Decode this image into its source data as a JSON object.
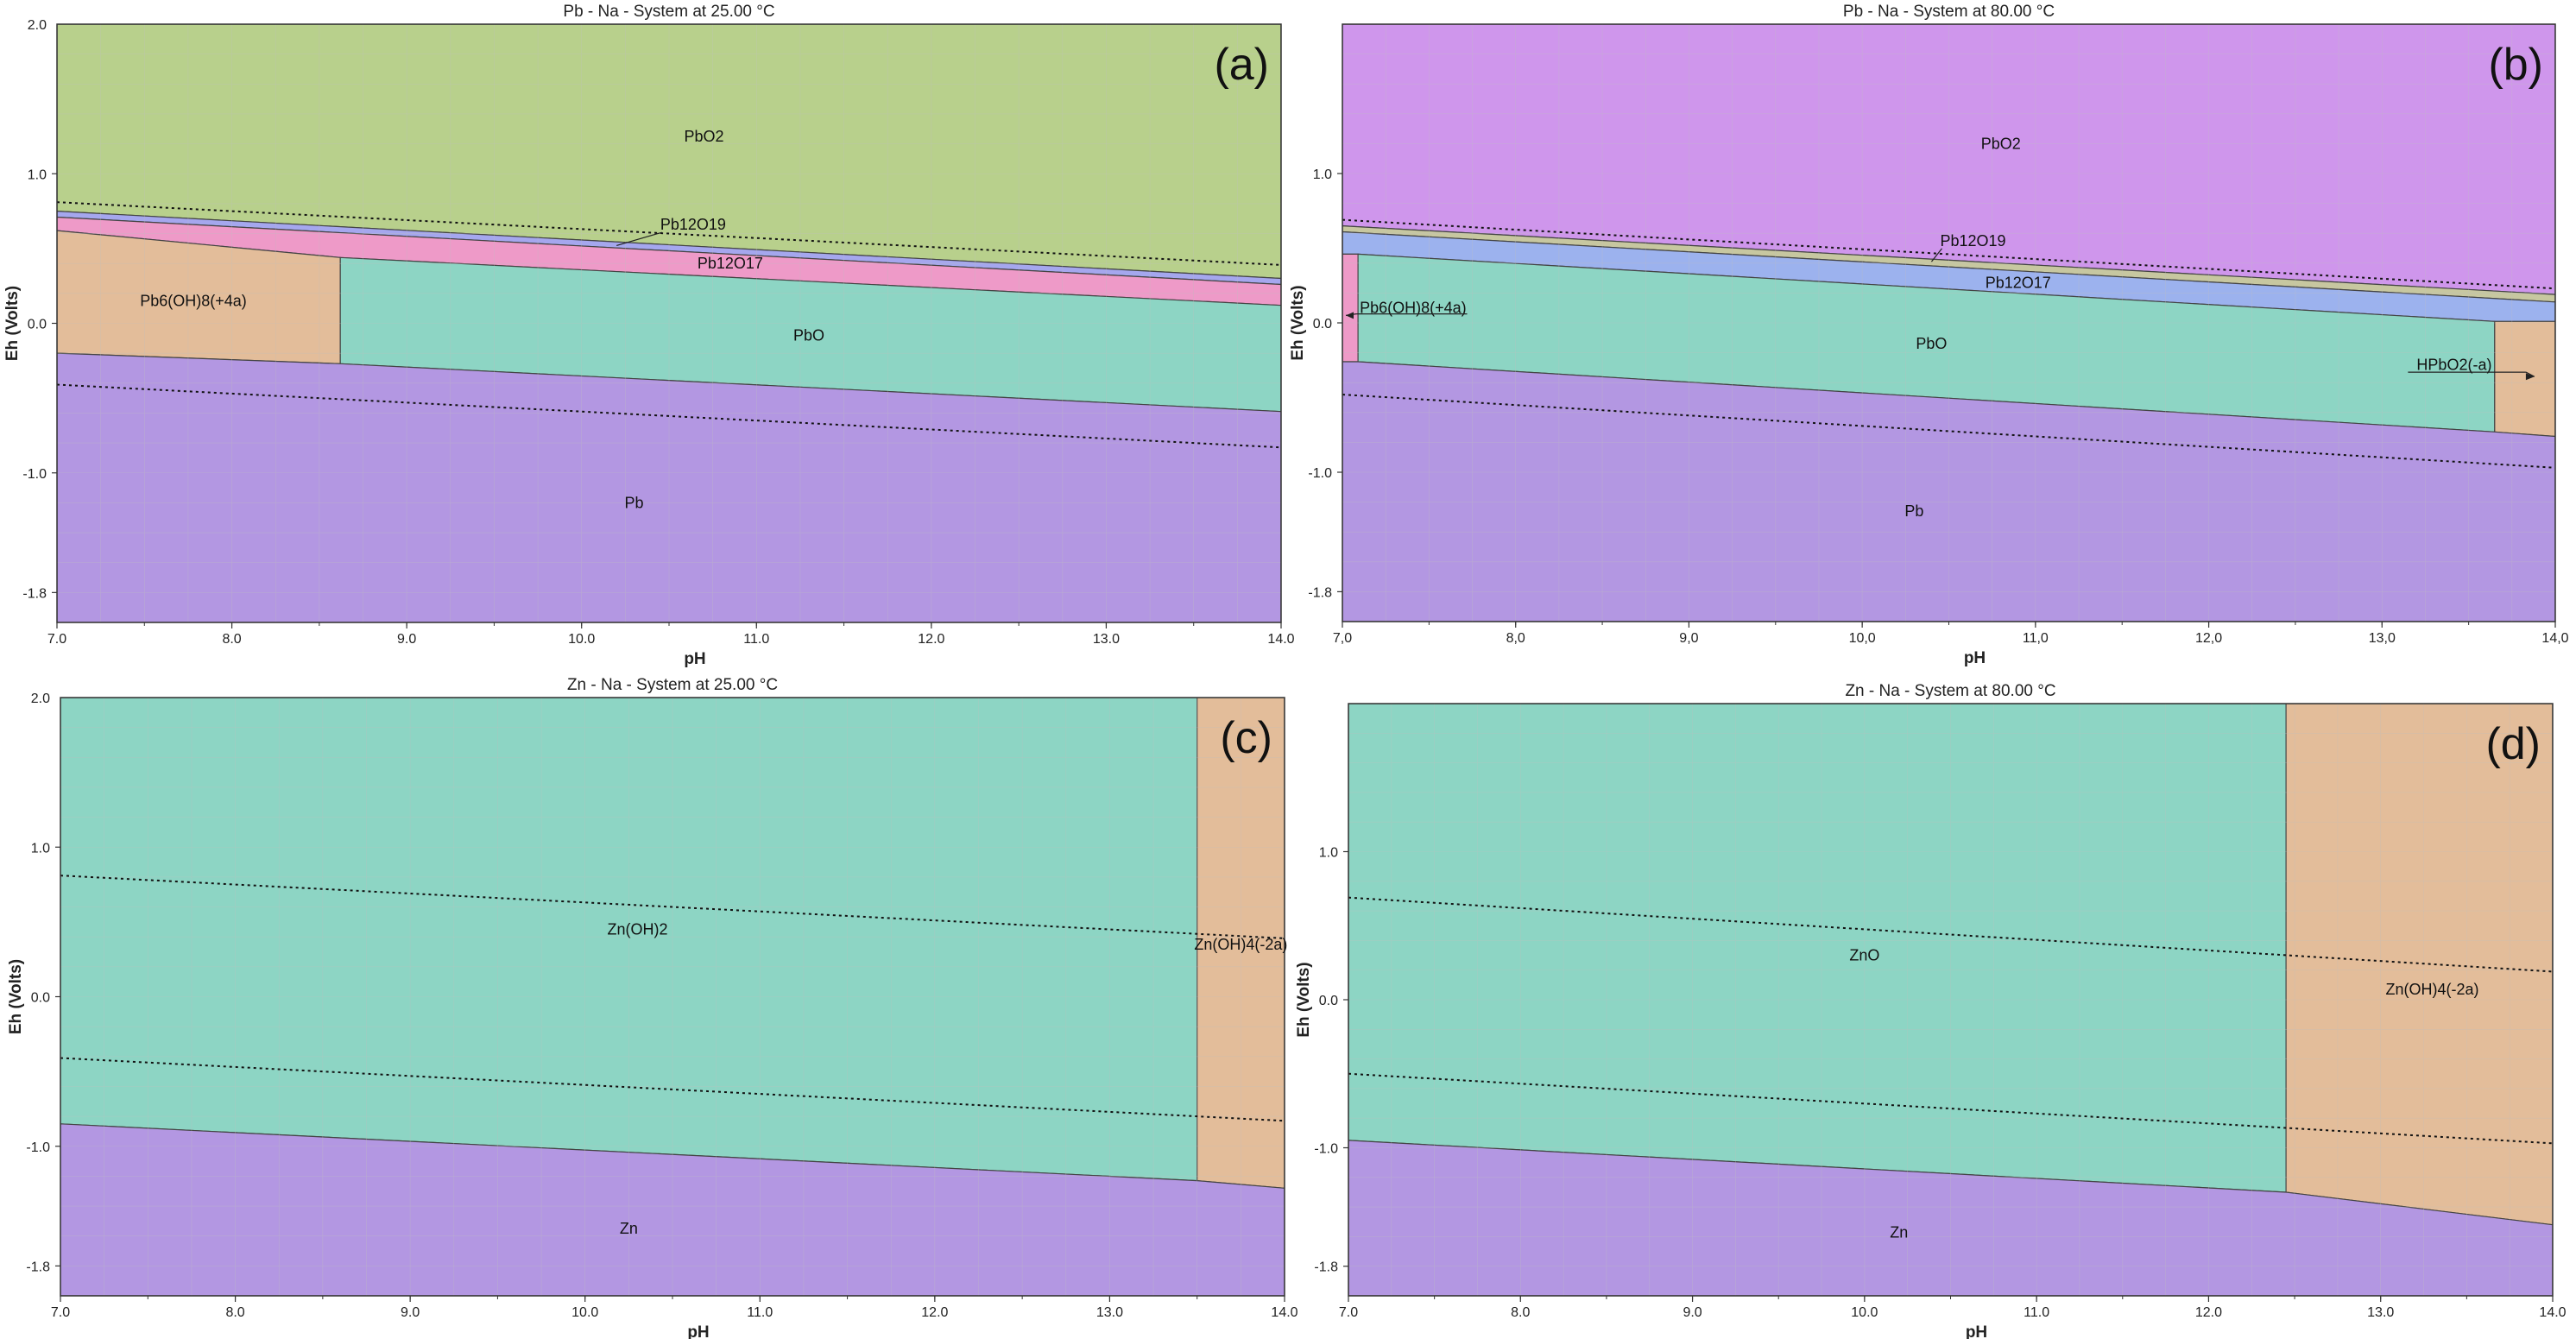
{
  "colors": {
    "PbO2_25": "#b8d08c",
    "PbO2_80": "#cf96ec",
    "Pb12O19": "#a5a7ee",
    "Pb12O17": "#ee9ac8",
    "Pb12O19_80": "#c7c7a0",
    "Pb12O17_80": "#9cb2ee",
    "Pb6OH8": "#e3bd9a",
    "PbO": "#8dd5c4",
    "metal": "#b397e2",
    "HPbO2": "#e3bd9a",
    "ZnOH2": "#8dd5c4",
    "ZnOH4": "#e3bd9a",
    "border": "#444444",
    "grid": "#bfbfbf",
    "water_line": "#111111"
  },
  "chart_data": [
    {
      "id": "a",
      "type": "area",
      "panel_label": "(a)",
      "title": "Pb - Na - System at 25.00 °C",
      "xlabel": "pH",
      "ylabel": "Eh (Volts)",
      "xlim": [
        7,
        14
      ],
      "ylim": [
        -2.0,
        2.0
      ],
      "xticks": [
        7,
        8,
        9,
        10,
        11,
        12,
        13,
        14
      ],
      "xtick_labels": [
        "7.0",
        "8.0",
        "9.0",
        "10.0",
        "11.0",
        "12.0",
        "13.0",
        "14.0"
      ],
      "yticks": [
        1.0,
        0.0,
        -1.0,
        -1.8
      ],
      "ytick_labels": [
        "1.0",
        "0.0",
        "-1.0",
        "-1.8"
      ],
      "top_ytick": 2.0,
      "top_ytick_label": "2.0",
      "regions": [
        {
          "name": "PbO2",
          "color_key": "PbO2_25",
          "polygon": [
            [
              7,
              2
            ],
            [
              14,
              2
            ],
            [
              14,
              0.3
            ],
            [
              7,
              0.75
            ]
          ],
          "label_at": [
            10.7,
            1.25
          ]
        },
        {
          "name": "Pb12O19",
          "color_key": "Pb12O19",
          "polygon": [
            [
              7,
              0.75
            ],
            [
              14,
              0.3
            ],
            [
              14,
              0.26
            ],
            [
              7,
              0.71
            ]
          ]
        },
        {
          "name": "Pb12O17",
          "color_key": "Pb12O17",
          "polygon": [
            [
              7,
              0.71
            ],
            [
              14,
              0.26
            ],
            [
              14,
              0.12
            ],
            [
              8.62,
              0.44
            ],
            [
              7,
              0.62
            ]
          ],
          "label_at": [
            10.85,
            0.4
          ]
        },
        {
          "name": "Pb6(OH)8(+4a)",
          "color_key": "Pb6OH8",
          "polygon": [
            [
              7,
              0.62
            ],
            [
              8.62,
              0.44
            ],
            [
              8.62,
              -0.27
            ],
            [
              7,
              -0.2
            ]
          ],
          "label_at": [
            7.78,
            0.15
          ]
        },
        {
          "name": "PbO",
          "color_key": "PbO",
          "polygon": [
            [
              8.62,
              0.44
            ],
            [
              14,
              0.12
            ],
            [
              14,
              -0.59
            ],
            [
              8.62,
              -0.27
            ]
          ],
          "label_at": [
            11.3,
            -0.08
          ]
        },
        {
          "name": "Pb",
          "color_key": "metal",
          "polygon": [
            [
              7,
              -0.2
            ],
            [
              8.62,
              -0.27
            ],
            [
              14,
              -0.59
            ],
            [
              14,
              -2
            ],
            [
              7,
              -2
            ]
          ],
          "label_at": [
            10.3,
            -1.2
          ]
        }
      ],
      "water_lines": [
        [
          [
            7,
            0.81
          ],
          [
            14,
            0.39
          ]
        ],
        [
          [
            7,
            -0.41
          ],
          [
            14,
            -0.83
          ]
        ]
      ],
      "callouts": [
        {
          "name": "Pb12O19",
          "text_at": [
            10.45,
            0.66
          ],
          "arrow_to": [
            10.2,
            0.52
          ]
        }
      ]
    },
    {
      "id": "b",
      "type": "area",
      "panel_label": "(b)",
      "title": "Pb - Na - System at 80.00 °C",
      "xlabel": "pH",
      "ylabel": "Eh (Volts)",
      "xlim": [
        7,
        14
      ],
      "ylim": [
        -2.0,
        2.0
      ],
      "xticks": [
        7,
        8,
        9,
        10,
        11,
        12,
        13,
        14
      ],
      "xtick_labels": [
        "7,0",
        "8,0",
        "9,0",
        "10,0",
        "11,0",
        "12,0",
        "13,0",
        "14,0"
      ],
      "yticks": [
        1.0,
        0.0,
        -1.0,
        -1.8
      ],
      "ytick_labels": [
        "1.0",
        "0.0",
        "-1.0",
        "-1.8"
      ],
      "regions": [
        {
          "name": "PbO2",
          "color_key": "PbO2_80",
          "polygon": [
            [
              7,
              2
            ],
            [
              14,
              2
            ],
            [
              14,
              0.19
            ],
            [
              7,
              0.65
            ]
          ],
          "label_at": [
            10.8,
            1.2
          ]
        },
        {
          "name": "Pb12O19",
          "color_key": "Pb12O19_80",
          "polygon": [
            [
              7,
              0.65
            ],
            [
              14,
              0.19
            ],
            [
              14,
              0.14
            ],
            [
              7,
              0.61
            ]
          ]
        },
        {
          "name": "Pb12O17",
          "color_key": "Pb12O17_80",
          "polygon": [
            [
              7,
              0.61
            ],
            [
              14,
              0.14
            ],
            [
              14,
              0.01
            ],
            [
              13.65,
              0.01
            ],
            [
              7.09,
              0.46
            ],
            [
              7,
              0.46
            ]
          ],
          "label_at": [
            10.9,
            0.27
          ]
        },
        {
          "name": "Pb6(OH)8(+4a)",
          "color_key": "Pb12O17",
          "polygon": [
            [
              7,
              0.46
            ],
            [
              7.09,
              0.46
            ],
            [
              7.09,
              -0.26
            ],
            [
              7,
              -0.26
            ]
          ]
        },
        {
          "name": "PbO",
          "color_key": "PbO",
          "polygon": [
            [
              7.09,
              0.46
            ],
            [
              13.65,
              0.01
            ],
            [
              13.65,
              -0.73
            ],
            [
              7.09,
              -0.26
            ]
          ],
          "label_at": [
            10.4,
            -0.14
          ]
        },
        {
          "name": "HPbO2(-a)",
          "color_key": "HPbO2",
          "polygon": [
            [
              13.65,
              0.01
            ],
            [
              14,
              0.01
            ],
            [
              14,
              -0.76
            ],
            [
              13.65,
              -0.73
            ]
          ]
        },
        {
          "name": "Pb",
          "color_key": "metal",
          "polygon": [
            [
              7,
              -0.26
            ],
            [
              7.09,
              -0.26
            ],
            [
              13.65,
              -0.73
            ],
            [
              14,
              -0.76
            ],
            [
              14,
              -2
            ],
            [
              7,
              -2
            ]
          ],
          "label_at": [
            10.3,
            -1.26
          ]
        }
      ],
      "water_lines": [
        [
          [
            7,
            0.69
          ],
          [
            14,
            0.23
          ]
        ],
        [
          [
            7,
            -0.48
          ],
          [
            14,
            -0.97
          ]
        ]
      ],
      "callouts": [
        {
          "name": "Pb12O19",
          "text_at": [
            10.45,
            0.55
          ],
          "arrow_to": [
            10.4,
            0.41
          ]
        },
        {
          "name": "Pb6(OH)8(+4a)",
          "text_at": [
            7.1,
            0.1
          ],
          "arrow_to": [
            7.02,
            0.05
          ],
          "underline_to": [
            7.72,
            0.06
          ]
        },
        {
          "name": "HPbO2(-a)",
          "text_at": [
            13.2,
            -0.28
          ],
          "arrow_to": [
            13.88,
            -0.36
          ],
          "underline_from": [
            13.15,
            -0.33
          ]
        }
      ]
    },
    {
      "id": "c",
      "type": "area",
      "panel_label": "(c)",
      "title": "Zn - Na - System at 25.00 °C",
      "xlabel": "pH",
      "ylabel": "Eh (Volts)",
      "xlim": [
        7,
        14
      ],
      "ylim": [
        -2.0,
        2.0
      ],
      "xticks": [
        7,
        8,
        9,
        10,
        11,
        12,
        13,
        14
      ],
      "xtick_labels": [
        "7.0",
        "8.0",
        "9.0",
        "10.0",
        "11.0",
        "12.0",
        "13.0",
        "14.0"
      ],
      "yticks": [
        1.0,
        0.0,
        -1.0,
        -1.8
      ],
      "ytick_labels": [
        "1.0",
        "0.0",
        "-1.0",
        "-1.8"
      ],
      "top_ytick": 2.0,
      "top_ytick_label": "2.0",
      "regions": [
        {
          "name": "Zn(OH)2",
          "color_key": "ZnOH2",
          "polygon": [
            [
              7,
              2
            ],
            [
              13.5,
              2
            ],
            [
              13.5,
              -1.23
            ],
            [
              7,
              -0.85
            ]
          ],
          "label_at": [
            10.3,
            0.45
          ]
        },
        {
          "name": "Zn(OH)4(-2a)",
          "color_key": "ZnOH4",
          "polygon": [
            [
              13.5,
              2
            ],
            [
              14,
              2
            ],
            [
              14,
              -1.28
            ],
            [
              13.5,
              -1.23
            ]
          ],
          "label_at": [
            13.75,
            0.35
          ]
        },
        {
          "name": "Zn",
          "color_key": "metal",
          "polygon": [
            [
              7,
              -0.85
            ],
            [
              13.5,
              -1.23
            ],
            [
              14,
              -1.28
            ],
            [
              14,
              -2
            ],
            [
              7,
              -2
            ]
          ],
          "label_at": [
            10.25,
            -1.55
          ]
        }
      ],
      "water_lines": [
        [
          [
            7,
            0.81
          ],
          [
            14,
            0.39
          ]
        ],
        [
          [
            7,
            -0.41
          ],
          [
            14,
            -0.83
          ]
        ]
      ],
      "callouts": []
    },
    {
      "id": "d",
      "type": "area",
      "panel_label": "(d)",
      "title": "Zn - Na - System at 80.00 °C",
      "xlabel": "pH",
      "ylabel": "Eh (Volts)",
      "xlim": [
        7,
        14
      ],
      "ylim": [
        -2.0,
        2.0
      ],
      "xticks": [
        7,
        8,
        9,
        10,
        11,
        12,
        13,
        14
      ],
      "xtick_labels": [
        "7.0",
        "8.0",
        "9.0",
        "10.0",
        "11.0",
        "12.0",
        "13.0",
        "14.0"
      ],
      "yticks": [
        1.0,
        0.0,
        -1.0,
        -1.8
      ],
      "ytick_labels": [
        "1.0",
        "0.0",
        "-1.0",
        "-1.8"
      ],
      "regions": [
        {
          "name": "ZnO",
          "color_key": "ZnOH2",
          "polygon": [
            [
              7,
              2
            ],
            [
              12.45,
              2
            ],
            [
              12.45,
              -1.3
            ],
            [
              7,
              -0.95
            ]
          ],
          "label_at": [
            10.0,
            0.3
          ]
        },
        {
          "name": "Zn(OH)4(-2a)",
          "color_key": "ZnOH4",
          "polygon": [
            [
              12.45,
              2
            ],
            [
              14,
              2
            ],
            [
              14,
              -1.52
            ],
            [
              12.45,
              -1.3
            ]
          ],
          "label_at": [
            13.3,
            0.07
          ]
        },
        {
          "name": "Zn",
          "color_key": "metal",
          "polygon": [
            [
              7,
              -0.95
            ],
            [
              12.45,
              -1.3
            ],
            [
              14,
              -1.52
            ],
            [
              14,
              -2
            ],
            [
              7,
              -2
            ]
          ],
          "label_at": [
            10.2,
            -1.57
          ]
        }
      ],
      "water_lines": [
        [
          [
            7,
            0.69
          ],
          [
            14,
            0.19
          ]
        ],
        [
          [
            7,
            -0.5
          ],
          [
            14,
            -0.97
          ]
        ]
      ],
      "callouts": []
    }
  ]
}
